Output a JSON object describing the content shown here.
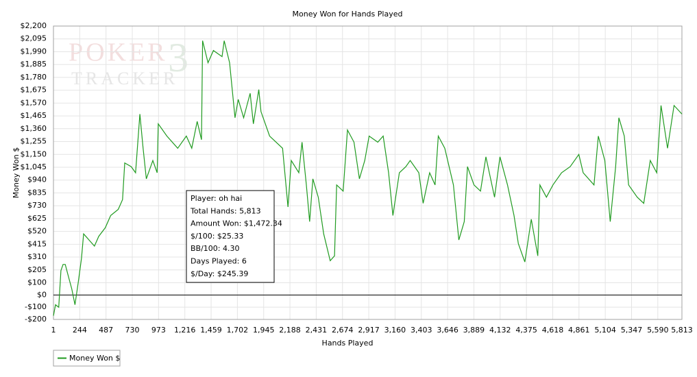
{
  "chart_data": {
    "type": "line",
    "title": "Money Won for Hands Played",
    "x_label": "Hands Played",
    "y_label": "Money Won $",
    "watermark": [
      "POKER",
      "3",
      "TRACKER"
    ],
    "annotation": [
      "Player: oh hai",
      "Total Hands: 5,813",
      "Amount Won: $1,472.34",
      "$/100: $25.33",
      "BB/100: 4.30",
      "Days Played: 6",
      "$/Day: $245.39"
    ],
    "xlim": [
      1,
      5813
    ],
    "ylim": [
      -200,
      2200
    ],
    "grid": true,
    "legend": "bottom-left",
    "xticks": [
      1,
      {
        "value": 244,
        "label": "244"
      },
      487,
      730,
      973,
      {
        "value": 1216,
        "label": "1,216"
      },
      {
        "value": 1459,
        "label": "1,459"
      },
      {
        "value": 1702,
        "label": "1,702"
      },
      {
        "value": 1945,
        "label": "1,945"
      },
      {
        "value": 2188,
        "label": "2,188"
      },
      {
        "value": 2431,
        "label": "2,431"
      },
      {
        "value": 2674,
        "label": "2,674"
      },
      {
        "value": 2917,
        "label": "2,917"
      },
      {
        "value": 3160,
        "label": "3,160"
      },
      {
        "value": 3403,
        "label": "3,403"
      },
      {
        "value": 3646,
        "label": "3,646"
      },
      {
        "value": 3889,
        "label": "3,889"
      },
      {
        "value": 4132,
        "label": "4,132"
      },
      {
        "value": 4375,
        "label": "4,375"
      },
      {
        "value": 4618,
        "label": "4,618"
      },
      {
        "value": 4861,
        "label": "4,861"
      },
      {
        "value": 5104,
        "label": "5,104"
      },
      {
        "value": 5347,
        "label": "5,347"
      },
      {
        "value": 5590,
        "label": "5,590"
      },
      {
        "value": 5813,
        "label": "5,813"
      }
    ],
    "yticks": [
      {
        "value": -200,
        "label": "-$200"
      },
      {
        "value": -100,
        "label": "-$100"
      },
      {
        "value": 0,
        "label": "$0"
      },
      {
        "value": 100,
        "label": "$100"
      },
      {
        "value": 205,
        "label": "$205"
      },
      {
        "value": 310,
        "label": "$310"
      },
      {
        "value": 415,
        "label": "$415"
      },
      {
        "value": 520,
        "label": "$520"
      },
      {
        "value": 625,
        "label": "$625"
      },
      {
        "value": 730,
        "label": "$730"
      },
      {
        "value": 835,
        "label": "$835"
      },
      {
        "value": 940,
        "label": "$940"
      },
      {
        "value": 1045,
        "label": "$1,045"
      },
      {
        "value": 1150,
        "label": "$1,150"
      },
      {
        "value": 1255,
        "label": "$1,255"
      },
      {
        "value": 1360,
        "label": "$1,360"
      },
      {
        "value": 1465,
        "label": "$1,465"
      },
      {
        "value": 1570,
        "label": "$1,570"
      },
      {
        "value": 1675,
        "label": "$1,675"
      },
      {
        "value": 1780,
        "label": "$1,780"
      },
      {
        "value": 1885,
        "label": "$1,885"
      },
      {
        "value": 1990,
        "label": "$1,990"
      },
      {
        "value": 2095,
        "label": "$2,095"
      },
      {
        "value": 2200,
        "label": "$2,200"
      }
    ],
    "series": [
      {
        "name": "Money Won $",
        "color": "#1f9a1f",
        "x": [
          1,
          20,
          50,
          70,
          90,
          110,
          140,
          170,
          200,
          230,
          260,
          280,
          330,
          380,
          420,
          480,
          530,
          600,
          640,
          660,
          720,
          760,
          800,
          830,
          860,
          920,
          960,
          970,
          1050,
          1150,
          1230,
          1280,
          1330,
          1370,
          1380,
          1430,
          1480,
          1560,
          1580,
          1630,
          1680,
          1710,
          1760,
          1820,
          1850,
          1900,
          1920,
          2000,
          2120,
          2170,
          2200,
          2270,
          2300,
          2340,
          2370,
          2400,
          2450,
          2500,
          2560,
          2600,
          2620,
          2680,
          2720,
          2780,
          2830,
          2880,
          2920,
          3000,
          3050,
          3100,
          3140,
          3200,
          3260,
          3300,
          3380,
          3420,
          3480,
          3530,
          3560,
          3620,
          3700,
          3750,
          3800,
          3830,
          3890,
          3950,
          4000,
          4080,
          4130,
          4200,
          4260,
          4300,
          4360,
          4420,
          4480,
          4500,
          4560,
          4620,
          4700,
          4780,
          4860,
          4900,
          5000,
          5040,
          5100,
          5150,
          5200,
          5230,
          5280,
          5320,
          5400,
          5460,
          5520,
          5580,
          5620,
          5680,
          5740,
          5813
        ],
        "values": [
          -170,
          -80,
          -100,
          200,
          250,
          250,
          150,
          50,
          -80,
          100,
          300,
          500,
          450,
          400,
          480,
          550,
          650,
          700,
          780,
          1080,
          1050,
          1000,
          1480,
          1200,
          950,
          1100,
          1000,
          1400,
          1300,
          1200,
          1300,
          1200,
          1420,
          1270,
          2080,
          1900,
          2000,
          1950,
          2080,
          1900,
          1450,
          1600,
          1450,
          1650,
          1400,
          1680,
          1500,
          1300,
          1200,
          720,
          1100,
          1000,
          1250,
          900,
          600,
          950,
          800,
          500,
          280,
          320,
          900,
          850,
          1350,
          1250,
          950,
          1100,
          1300,
          1250,
          1300,
          1000,
          650,
          1000,
          1050,
          1100,
          1000,
          750,
          1000,
          900,
          1300,
          1200,
          900,
          450,
          600,
          1050,
          900,
          850,
          1130,
          800,
          1130,
          900,
          650,
          420,
          270,
          620,
          320,
          900,
          800,
          900,
          1000,
          1050,
          1150,
          1000,
          900,
          1300,
          1100,
          600,
          1050,
          1450,
          1300,
          900,
          800,
          750,
          1100,
          1000,
          1550,
          1200,
          1550,
          1480
        ]
      }
    ]
  }
}
